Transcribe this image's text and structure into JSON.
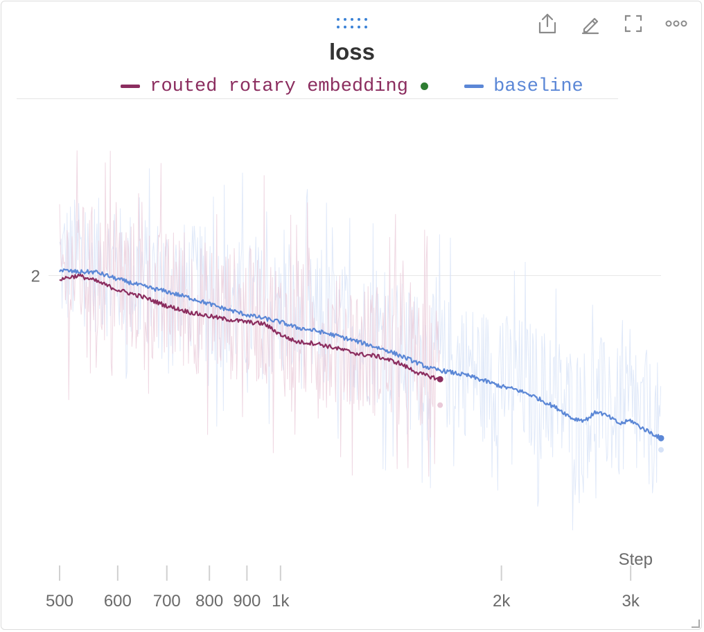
{
  "panel": {
    "toolbar": [
      {
        "name": "share-icon"
      },
      {
        "name": "edit-icon"
      },
      {
        "name": "fullscreen-icon"
      },
      {
        "name": "more-icon"
      }
    ],
    "drag_handle_icon": "drag-handle-icon"
  },
  "colors": {
    "routed": "#8b2d5f",
    "baseline": "#5b87d6",
    "status_dot": "#2e7d32"
  },
  "chart_data": {
    "type": "line",
    "title": "loss",
    "xlabel": "Step",
    "ylabel": "",
    "x_scale": "log",
    "xlim": [
      500,
      3300
    ],
    "ylim": [
      1.22,
      2.48
    ],
    "x_ticks": [
      {
        "value": 500,
        "label": "500"
      },
      {
        "value": 600,
        "label": "600"
      },
      {
        "value": 700,
        "label": "700"
      },
      {
        "value": 800,
        "label": "800"
      },
      {
        "value": 900,
        "label": "900"
      },
      {
        "value": 1000,
        "label": "1k"
      },
      {
        "value": 2000,
        "label": "2k"
      },
      {
        "value": 3000,
        "label": "3k"
      }
    ],
    "y_ticks": [
      {
        "value": 2,
        "label": "2"
      }
    ],
    "grid": true,
    "legend_position": "top-center",
    "series": [
      {
        "name": "routed rotary embedding",
        "color": "#8b2d5f",
        "x": [
          500,
          530,
          560,
          600,
          650,
          700,
          760,
          830,
          900,
          950,
          1000,
          1050,
          1120,
          1200,
          1280,
          1350,
          1450,
          1550,
          1650
        ],
        "values": [
          1.99,
          2.0,
          1.985,
          1.96,
          1.94,
          1.915,
          1.895,
          1.88,
          1.87,
          1.865,
          1.835,
          1.815,
          1.81,
          1.795,
          1.78,
          1.775,
          1.755,
          1.725,
          1.71
        ],
        "raw_range": [
          1.4,
          2.35
        ]
      },
      {
        "name": "baseline",
        "color": "#5b87d6",
        "x": [
          500,
          530,
          560,
          600,
          650,
          700,
          760,
          830,
          900,
          950,
          1000,
          1050,
          1120,
          1200,
          1300,
          1400,
          1500,
          1600,
          1700,
          1800,
          1900,
          2000,
          2100,
          2200,
          2300,
          2400,
          2500,
          2600,
          2700,
          2800,
          2900,
          3000,
          3100,
          3200,
          3300
        ],
        "values": [
          2.015,
          2.01,
          2.01,
          1.99,
          1.97,
          1.955,
          1.935,
          1.91,
          1.89,
          1.88,
          1.87,
          1.855,
          1.845,
          1.83,
          1.81,
          1.79,
          1.765,
          1.74,
          1.73,
          1.72,
          1.705,
          1.69,
          1.68,
          1.665,
          1.645,
          1.625,
          1.6,
          1.595,
          1.62,
          1.605,
          1.585,
          1.595,
          1.575,
          1.56,
          1.545
        ],
        "raw_range": [
          1.25,
          2.3
        ]
      }
    ]
  }
}
